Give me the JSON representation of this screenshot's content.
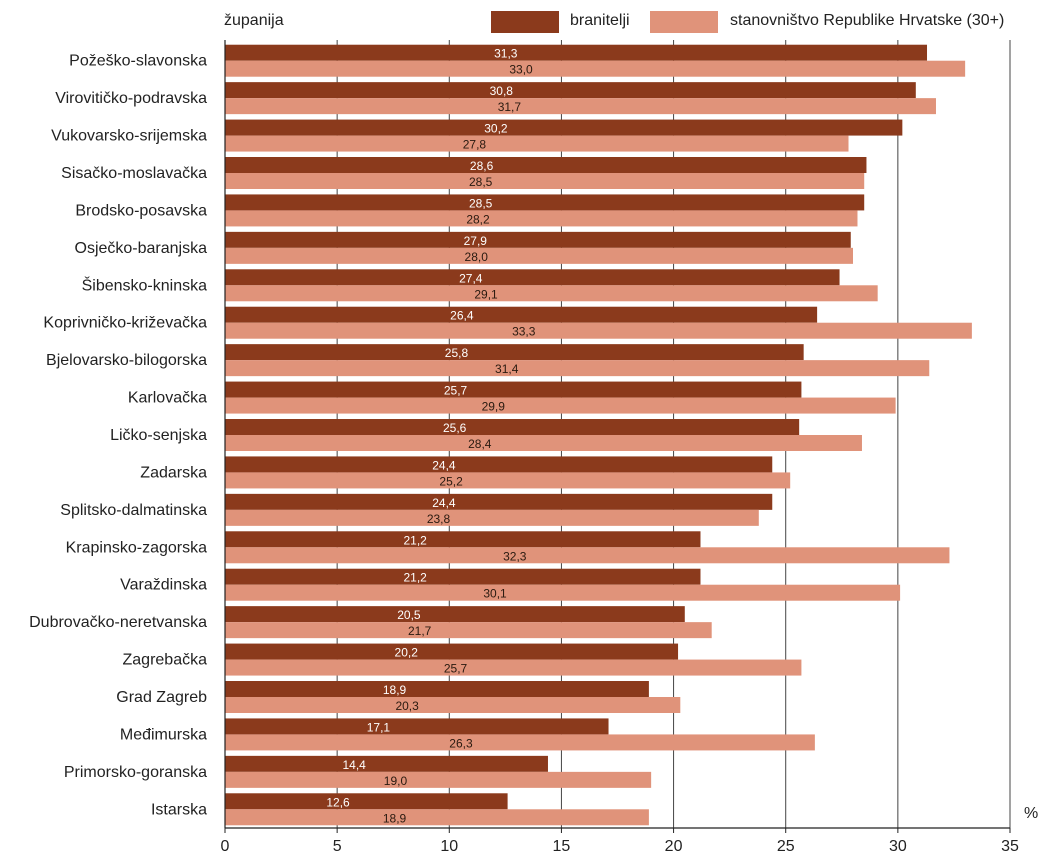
{
  "chart_data": {
    "type": "bar",
    "orientation": "horizontal",
    "category_header": "županija",
    "unit_label": "%",
    "categories": [
      "Požeško-slavonska",
      "Virovitičko-podravska",
      "Vukovarsko-srijemska",
      "Sisačko-moslavačka",
      "Brodsko-posavska",
      "Osječko-baranjska",
      "Šibensko-kninska",
      "Koprivničko-križevačka",
      "Bjelovarsko-bilogorska",
      "Karlovačka",
      "Ličko-senjska",
      "Zadarska",
      "Splitsko-dalmatinska",
      "Krapinsko-zagorska",
      "Varaždinska",
      "Dubrovačko-neretvanska",
      "Zagrebačka",
      "Grad Zagreb",
      "Međimurska",
      "Primorsko-goranska",
      "Istarska"
    ],
    "series": [
      {
        "name": "branitelji",
        "color": "#8b3a1c",
        "label_color": "#ffffff",
        "values": [
          31.3,
          30.8,
          30.2,
          28.6,
          28.5,
          27.9,
          27.4,
          26.4,
          25.8,
          25.7,
          25.6,
          24.4,
          24.4,
          21.2,
          21.2,
          20.5,
          20.2,
          18.9,
          17.1,
          14.4,
          12.6
        ],
        "labels": [
          "31,3",
          "30,8",
          "30,2",
          "28,6",
          "28,5",
          "27,9",
          "27,4",
          "26,4",
          "25,8",
          "25,7",
          "25,6",
          "24,4",
          "24,4",
          "21,2",
          "21,2",
          "20,5",
          "20,2",
          "18,9",
          "17,1",
          "14,4",
          "12,6"
        ]
      },
      {
        "name": "stanovništvo Republike Hrvatske (30+)",
        "color": "#e0937a",
        "label_color": "#2a1a10",
        "values": [
          33.0,
          31.7,
          27.8,
          28.5,
          28.2,
          28.0,
          29.1,
          33.3,
          31.4,
          29.9,
          28.4,
          25.2,
          23.8,
          32.3,
          30.1,
          21.7,
          25.7,
          20.3,
          26.3,
          19.0,
          18.9
        ],
        "labels": [
          "33,0",
          "31,7",
          "27,8",
          "28,5",
          "28,2",
          "28,0",
          "29,1",
          "33,3",
          "31,4",
          "29,9",
          "28,4",
          "25,2",
          "23,8",
          "32,3",
          "30,1",
          "21,7",
          "25,7",
          "20,3",
          "26,3",
          "19,0",
          "18,9"
        ]
      }
    ],
    "xlim": [
      0,
      35
    ],
    "xticks": [
      0,
      5,
      10,
      15,
      20,
      25,
      30,
      35
    ],
    "grid": true,
    "legend_position": "top"
  }
}
